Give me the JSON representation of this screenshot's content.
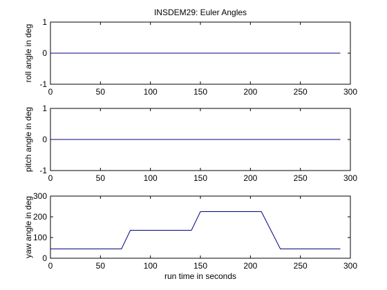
{
  "chart_data": [
    {
      "type": "line",
      "title": "INSDEM29:  Euler Angles",
      "xlabel": "",
      "ylabel": "roll angle in deg",
      "xlim": [
        0,
        300
      ],
      "ylim": [
        -1,
        1
      ],
      "xticks": [
        0,
        50,
        100,
        150,
        200,
        250,
        300
      ],
      "yticks": [
        -1,
        0,
        1
      ],
      "grid": false,
      "line_color": "#00007f",
      "series": [
        {
          "x": [
            0,
            290
          ],
          "y": [
            0,
            0
          ]
        }
      ]
    },
    {
      "type": "line",
      "title": "",
      "xlabel": "",
      "ylabel": "pitch angle in deg",
      "xlim": [
        0,
        300
      ],
      "ylim": [
        -1,
        1
      ],
      "xticks": [
        0,
        50,
        100,
        150,
        200,
        250,
        300
      ],
      "yticks": [
        -1,
        0,
        1
      ],
      "grid": false,
      "line_color": "#00007f",
      "series": [
        {
          "x": [
            0,
            290
          ],
          "y": [
            0,
            0
          ]
        }
      ]
    },
    {
      "type": "line",
      "title": "",
      "xlabel": "run time in seconds",
      "ylabel": "yaw angle in deg",
      "xlim": [
        0,
        300
      ],
      "ylim": [
        0,
        300
      ],
      "xticks": [
        0,
        50,
        100,
        150,
        200,
        250,
        300
      ],
      "yticks": [
        0,
        100,
        200,
        300
      ],
      "grid": false,
      "line_color": "#00007f",
      "series": [
        {
          "x": [
            0,
            71,
            80,
            141,
            150,
            211,
            230,
            290
          ],
          "y": [
            45,
            45,
            135,
            135,
            225,
            225,
            45,
            45
          ]
        }
      ]
    }
  ]
}
